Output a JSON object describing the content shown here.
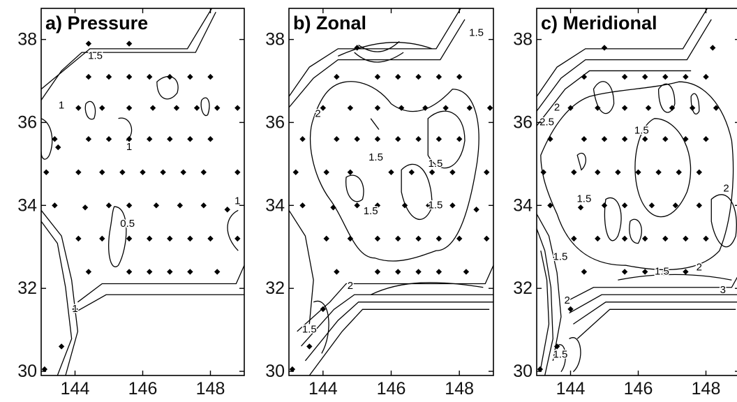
{
  "chart_data": [
    {
      "type": "contour",
      "title": "a) Pressure",
      "xlim": [
        143,
        149
      ],
      "ylim": [
        29.9,
        38.75
      ],
      "xticks": [
        144,
        146,
        148
      ],
      "yticks": [
        30,
        32,
        34,
        36,
        38
      ],
      "contour_labels": [
        {
          "text": "1.5",
          "x": 144.6,
          "y": 37.6
        },
        {
          "text": "1",
          "x": 143.6,
          "y": 36.4
        },
        {
          "text": "1",
          "x": 145.6,
          "y": 35.4
        },
        {
          "text": "0.5",
          "x": 145.55,
          "y": 33.55
        },
        {
          "text": "1",
          "x": 148.8,
          "y": 34.1
        },
        {
          "text": "1",
          "x": 144.0,
          "y": 31.5
        }
      ],
      "stations": [
        [
          144.4,
          37.9
        ],
        [
          145.6,
          37.9
        ],
        [
          144.4,
          37.1
        ],
        [
          145.0,
          37.1
        ],
        [
          145.6,
          37.1
        ],
        [
          146.2,
          37.1
        ],
        [
          146.8,
          37.1
        ],
        [
          147.4,
          37.1
        ],
        [
          148.0,
          37.1
        ],
        [
          144.1,
          36.35
        ],
        [
          144.8,
          36.35
        ],
        [
          145.6,
          36.35
        ],
        [
          146.3,
          36.35
        ],
        [
          147.0,
          36.35
        ],
        [
          147.6,
          36.35
        ],
        [
          148.2,
          36.35
        ],
        [
          148.8,
          36.35
        ],
        [
          143.4,
          35.6
        ],
        [
          144.4,
          35.6
        ],
        [
          145.0,
          35.6
        ],
        [
          145.6,
          35.6
        ],
        [
          146.2,
          35.6
        ],
        [
          146.8,
          35.6
        ],
        [
          147.4,
          35.6
        ],
        [
          148.0,
          35.6
        ],
        [
          143.5,
          35.4
        ],
        [
          143.15,
          34.8
        ],
        [
          144.1,
          34.8
        ],
        [
          144.8,
          34.8
        ],
        [
          145.4,
          34.8
        ],
        [
          146.0,
          34.8
        ],
        [
          146.6,
          34.8
        ],
        [
          147.2,
          34.8
        ],
        [
          147.8,
          34.8
        ],
        [
          148.8,
          34.8
        ],
        [
          143.4,
          34.0
        ],
        [
          144.3,
          33.95
        ],
        [
          145.0,
          34.0
        ],
        [
          145.6,
          34.0
        ],
        [
          146.4,
          34.0
        ],
        [
          147.1,
          34.0
        ],
        [
          147.8,
          34.0
        ],
        [
          148.5,
          33.9
        ],
        [
          144.1,
          33.2
        ],
        [
          144.8,
          33.2
        ],
        [
          145.6,
          33.2
        ],
        [
          146.2,
          33.2
        ],
        [
          146.8,
          33.2
        ],
        [
          147.4,
          33.2
        ],
        [
          148.0,
          33.2
        ],
        [
          148.8,
          33.2
        ],
        [
          144.4,
          32.4
        ],
        [
          145.6,
          32.4
        ],
        [
          146.2,
          32.4
        ],
        [
          146.8,
          32.4
        ],
        [
          147.4,
          32.4
        ],
        [
          148.2,
          32.4
        ],
        [
          144.0,
          31.5
        ],
        [
          143.6,
          30.6
        ],
        [
          143.1,
          30.05
        ]
      ]
    },
    {
      "type": "contour",
      "title": "b) Zonal",
      "xlim": [
        143,
        149
      ],
      "ylim": [
        29.9,
        38.75
      ],
      "xticks": [
        144,
        146,
        148
      ],
      "yticks": [
        30,
        32,
        34,
        36,
        38
      ],
      "contour_labels": [
        {
          "text": "1.5",
          "x": 148.5,
          "y": 38.15
        },
        {
          "text": "2",
          "x": 143.85,
          "y": 36.2
        },
        {
          "text": "1.5",
          "x": 145.55,
          "y": 35.15
        },
        {
          "text": "1.5",
          "x": 147.3,
          "y": 35.0
        },
        {
          "text": "1.5",
          "x": 145.4,
          "y": 33.85
        },
        {
          "text": "1.5",
          "x": 147.3,
          "y": 34.0
        },
        {
          "text": "2",
          "x": 144.8,
          "y": 32.05
        },
        {
          "text": "1.5",
          "x": 143.6,
          "y": 31.0
        }
      ],
      "stations": [
        [
          145.0,
          37.8
        ],
        [
          144.4,
          37.1
        ],
        [
          145.6,
          37.1
        ],
        [
          146.2,
          37.1
        ],
        [
          146.8,
          37.1
        ],
        [
          147.4,
          37.1
        ],
        [
          148.0,
          37.1
        ],
        [
          144.0,
          36.35
        ],
        [
          144.8,
          36.35
        ],
        [
          145.6,
          36.35
        ],
        [
          146.3,
          36.35
        ],
        [
          147.0,
          36.35
        ],
        [
          147.6,
          36.35
        ],
        [
          148.3,
          36.35
        ],
        [
          148.9,
          36.35
        ],
        [
          143.4,
          35.6
        ],
        [
          144.4,
          35.6
        ],
        [
          145.0,
          35.6
        ],
        [
          145.6,
          35.6
        ],
        [
          146.2,
          35.6
        ],
        [
          146.8,
          35.6
        ],
        [
          147.4,
          35.6
        ],
        [
          148.0,
          35.6
        ],
        [
          143.2,
          34.8
        ],
        [
          144.1,
          34.8
        ],
        [
          144.8,
          34.8
        ],
        [
          146.0,
          34.8
        ],
        [
          146.6,
          34.8
        ],
        [
          147.2,
          34.8
        ],
        [
          147.8,
          34.8
        ],
        [
          148.8,
          34.8
        ],
        [
          143.4,
          34.0
        ],
        [
          144.3,
          33.95
        ],
        [
          145.0,
          34.0
        ],
        [
          145.6,
          34.0
        ],
        [
          146.4,
          34.0
        ],
        [
          147.1,
          34.0
        ],
        [
          147.8,
          34.0
        ],
        [
          148.5,
          33.9
        ],
        [
          144.1,
          33.2
        ],
        [
          144.8,
          33.2
        ],
        [
          145.6,
          33.2
        ],
        [
          146.2,
          33.2
        ],
        [
          146.8,
          33.2
        ],
        [
          147.4,
          33.2
        ],
        [
          148.0,
          33.2
        ],
        [
          148.8,
          33.2
        ],
        [
          144.4,
          32.4
        ],
        [
          145.6,
          32.4
        ],
        [
          146.2,
          32.4
        ],
        [
          146.8,
          32.4
        ],
        [
          147.4,
          32.4
        ],
        [
          148.2,
          32.4
        ],
        [
          144.0,
          31.5
        ],
        [
          143.6,
          30.6
        ],
        [
          143.1,
          30.05
        ]
      ]
    },
    {
      "type": "contour",
      "title": "c) Meridional",
      "xlim": [
        143,
        149
      ],
      "ylim": [
        29.9,
        38.75
      ],
      "xticks": [
        144,
        146,
        148
      ],
      "yticks": [
        30,
        32,
        34,
        36,
        38
      ],
      "contour_labels": [
        {
          "text": "2.5",
          "x": 143.3,
          "y": 36.0
        },
        {
          "text": "2",
          "x": 143.6,
          "y": 36.35
        },
        {
          "text": "1.5",
          "x": 146.1,
          "y": 35.8
        },
        {
          "text": "1.5",
          "x": 144.4,
          "y": 34.15
        },
        {
          "text": "2",
          "x": 148.6,
          "y": 34.4
        },
        {
          "text": "1.5",
          "x": 143.7,
          "y": 32.75
        },
        {
          "text": "1.5",
          "x": 146.7,
          "y": 32.4
        },
        {
          "text": "2",
          "x": 147.8,
          "y": 32.5
        },
        {
          "text": "3",
          "x": 148.5,
          "y": 31.95
        },
        {
          "text": "2",
          "x": 143.9,
          "y": 31.7
        },
        {
          "text": "1.5",
          "x": 143.7,
          "y": 30.4
        }
      ],
      "stations": [
        [
          145.0,
          37.8
        ],
        [
          148.2,
          37.8
        ],
        [
          144.4,
          37.1
        ],
        [
          145.6,
          37.1
        ],
        [
          146.2,
          37.1
        ],
        [
          146.8,
          37.1
        ],
        [
          147.4,
          37.1
        ],
        [
          148.0,
          37.1
        ],
        [
          144.0,
          36.35
        ],
        [
          144.8,
          36.35
        ],
        [
          145.6,
          36.35
        ],
        [
          146.3,
          36.35
        ],
        [
          147.0,
          36.35
        ],
        [
          147.6,
          36.35
        ],
        [
          148.3,
          36.35
        ],
        [
          143.4,
          35.6
        ],
        [
          144.4,
          35.6
        ],
        [
          145.0,
          35.6
        ],
        [
          145.6,
          35.6
        ],
        [
          146.2,
          35.6
        ],
        [
          146.8,
          35.6
        ],
        [
          147.4,
          35.6
        ],
        [
          148.0,
          35.6
        ],
        [
          143.2,
          34.8
        ],
        [
          144.1,
          34.8
        ],
        [
          144.8,
          34.8
        ],
        [
          145.4,
          34.8
        ],
        [
          146.0,
          34.8
        ],
        [
          146.6,
          34.8
        ],
        [
          147.2,
          34.8
        ],
        [
          147.8,
          34.8
        ],
        [
          143.4,
          34.0
        ],
        [
          144.3,
          33.95
        ],
        [
          145.0,
          34.0
        ],
        [
          145.6,
          34.0
        ],
        [
          146.4,
          34.0
        ],
        [
          147.1,
          34.0
        ],
        [
          147.8,
          34.0
        ],
        [
          144.1,
          33.2
        ],
        [
          144.8,
          33.2
        ],
        [
          145.6,
          33.2
        ],
        [
          146.2,
          33.2
        ],
        [
          146.8,
          33.2
        ],
        [
          147.4,
          33.2
        ],
        [
          148.0,
          33.2
        ],
        [
          144.4,
          32.4
        ],
        [
          145.6,
          32.4
        ],
        [
          146.2,
          32.4
        ],
        [
          146.8,
          32.4
        ],
        [
          147.4,
          32.4
        ],
        [
          144.0,
          31.5
        ],
        [
          143.6,
          30.6
        ],
        [
          143.1,
          30.05
        ]
      ]
    }
  ]
}
